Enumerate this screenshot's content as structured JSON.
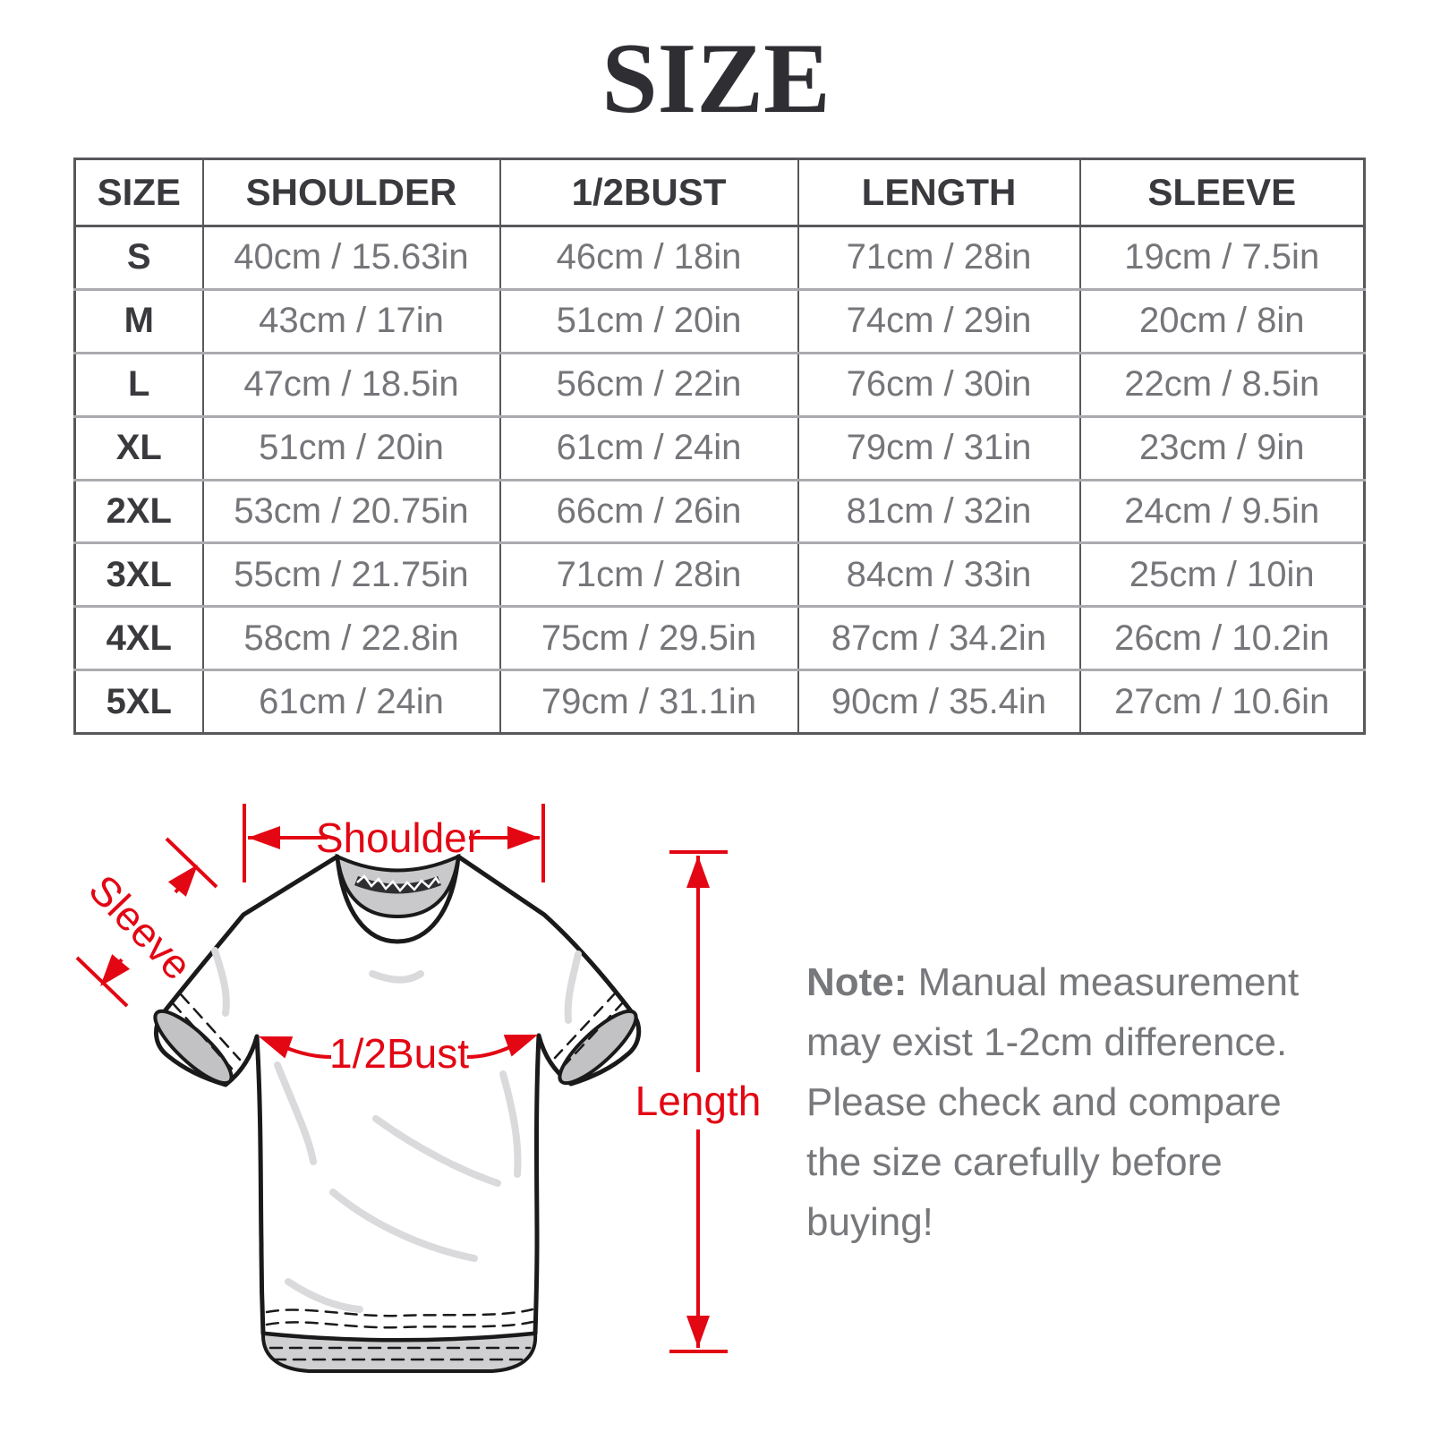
{
  "title": "SIZE",
  "colors": {
    "accent_red": "#e30613",
    "dark_text": "#3a3a3e",
    "gray_text": "#75757a",
    "border_dark": "#58585c",
    "border_light": "#ababaf"
  },
  "table": {
    "headers": [
      "SIZE",
      "SHOULDER",
      "1/2BUST",
      "LENGTH",
      "SLEEVE"
    ],
    "rows": [
      [
        "S",
        "40cm / 15.63in",
        "46cm / 18in",
        "71cm / 28in",
        "19cm / 7.5in"
      ],
      [
        "M",
        "43cm / 17in",
        "51cm / 20in",
        "74cm / 29in",
        "20cm / 8in"
      ],
      [
        "L",
        "47cm / 18.5in",
        "56cm / 22in",
        "76cm / 30in",
        "22cm / 8.5in"
      ],
      [
        "XL",
        "51cm / 20in",
        "61cm / 24in",
        "79cm / 31in",
        "23cm / 9in"
      ],
      [
        "2XL",
        "53cm / 20.75in",
        "66cm / 26in",
        "81cm / 32in",
        "24cm / 9.5in"
      ],
      [
        "3XL",
        "55cm / 21.75in",
        "71cm / 28in",
        "84cm / 33in",
        "25cm / 10in"
      ],
      [
        "4XL",
        "58cm / 22.8in",
        "75cm / 29.5in",
        "87cm / 34.2in",
        "26cm / 10.2in"
      ],
      [
        "5XL",
        "61cm / 24in",
        "79cm / 31.1in",
        "90cm / 35.4in",
        "27cm / 10.6in"
      ]
    ]
  },
  "diagram": {
    "labels": {
      "shoulder": "Shoulder",
      "sleeve": "Sleeve",
      "bust": "1/2Bust",
      "length": "Length"
    }
  },
  "note": {
    "label": "Note:",
    "text": " Manual measurement may exist 1-2cm difference. Please check and compare the size carefully before buying!"
  }
}
